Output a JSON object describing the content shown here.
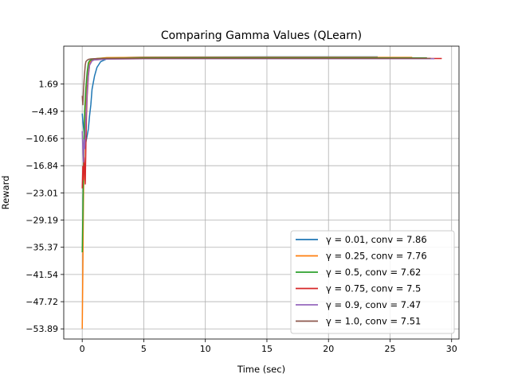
{
  "chart_data": {
    "type": "line",
    "title": "Comparing Gamma Values (QLearn)",
    "xlabel": "Time (sec)",
    "ylabel": "Reward",
    "xlim": [
      -1.5,
      30.6
    ],
    "ylim": [
      -56.2,
      10.3
    ],
    "x_ticks": [
      0,
      5,
      10,
      15,
      20,
      25,
      30
    ],
    "x_tick_labels": [
      "0",
      "5",
      "10",
      "15",
      "20",
      "25",
      "30"
    ],
    "y_ticks": [
      1.69,
      -4.49,
      -10.66,
      -16.84,
      -23.01,
      -29.19,
      -35.37,
      -41.54,
      -47.72,
      -53.89
    ],
    "y_tick_labels": [
      "1.69",
      "−4.49",
      "−10.66",
      "−16.84",
      "−23.01",
      "−29.19",
      "−35.37",
      "−41.54",
      "−47.72",
      "−53.89"
    ],
    "grid": true,
    "legend_position": "lower-right",
    "series": [
      {
        "name": "γ = 0.01, conv = 7.86",
        "color": "#1f77b4",
        "x": [
          0.0,
          0.1,
          0.2,
          0.3,
          0.4,
          0.5,
          0.6,
          0.7,
          0.8,
          1.0,
          1.2,
          1.5,
          2.0,
          3.0,
          5.0,
          10.0,
          15.0,
          20.0,
          24.0
        ],
        "y": [
          -5.0,
          -8.0,
          -10.5,
          -11.5,
          -10.0,
          -8.5,
          -5.5,
          -3.0,
          0.5,
          3.5,
          5.5,
          6.8,
          7.4,
          7.7,
          7.8,
          7.85,
          7.86,
          7.86,
          7.86
        ]
      },
      {
        "name": "γ = 0.25, conv = 7.76",
        "color": "#ff7f0e",
        "x": [
          0.0,
          0.05,
          0.1,
          0.15,
          0.2,
          0.3,
          0.4,
          0.5,
          0.6,
          0.7,
          0.9,
          1.2,
          2.0,
          5.0,
          10.0,
          20.0,
          26.8
        ],
        "y": [
          -53.9,
          -40.0,
          -25.0,
          -15.0,
          -8.0,
          -2.0,
          2.5,
          5.0,
          6.5,
          7.0,
          7.3,
          7.5,
          7.7,
          7.75,
          7.76,
          7.76,
          7.76
        ]
      },
      {
        "name": "γ = 0.5, conv = 7.62",
        "color": "#2ca02c",
        "x": [
          0.0,
          0.05,
          0.1,
          0.15,
          0.2,
          0.3,
          0.4,
          0.5,
          0.6,
          0.8,
          1.0,
          2.0,
          5.0,
          10.0,
          20.0,
          28.0
        ],
        "y": [
          -36.5,
          -28.0,
          -18.0,
          -10.0,
          -4.0,
          1.0,
          4.5,
          6.5,
          7.0,
          7.3,
          7.45,
          7.55,
          7.6,
          7.62,
          7.62,
          7.62
        ]
      },
      {
        "name": "γ = 0.75, conv = 7.5",
        "color": "#d62728",
        "x": [
          0.0,
          0.05,
          0.1,
          0.15,
          0.2,
          0.25,
          0.3,
          0.35,
          0.4,
          0.5,
          0.6,
          0.8,
          1.0,
          2.0,
          5.0,
          10.0,
          20.0,
          29.2
        ],
        "y": [
          -22.0,
          -17.0,
          -20.0,
          -15.0,
          -18.0,
          -21.0,
          -12.0,
          -5.0,
          -1.0,
          3.5,
          6.0,
          7.0,
          7.2,
          7.4,
          7.45,
          7.5,
          7.5,
          7.5
        ]
      },
      {
        "name": "γ = 0.9, conv = 7.47",
        "color": "#9467bd",
        "x": [
          0.0,
          0.05,
          0.1,
          0.15,
          0.2,
          0.3,
          0.4,
          0.5,
          0.6,
          0.8,
          1.0,
          2.0,
          5.0,
          10.0,
          20.0,
          28.6
        ],
        "y": [
          -9.0,
          -13.0,
          -16.0,
          -11.0,
          -13.0,
          -6.0,
          0.0,
          4.0,
          6.0,
          7.0,
          7.2,
          7.35,
          7.45,
          7.47,
          7.47,
          7.47
        ]
      },
      {
        "name": "γ = 1.0, conv = 7.51",
        "color": "#8c564b",
        "x": [
          0.0,
          0.05,
          0.1,
          0.15,
          0.2,
          0.25,
          0.3,
          0.4,
          0.5,
          0.7,
          1.0,
          2.0,
          5.0,
          10.0,
          20.0,
          28.3
        ],
        "y": [
          -1.0,
          -3.0,
          0.0,
          2.5,
          4.5,
          6.0,
          6.8,
          7.1,
          7.3,
          7.4,
          7.45,
          7.5,
          7.51,
          7.51,
          7.51,
          7.51
        ]
      }
    ]
  }
}
